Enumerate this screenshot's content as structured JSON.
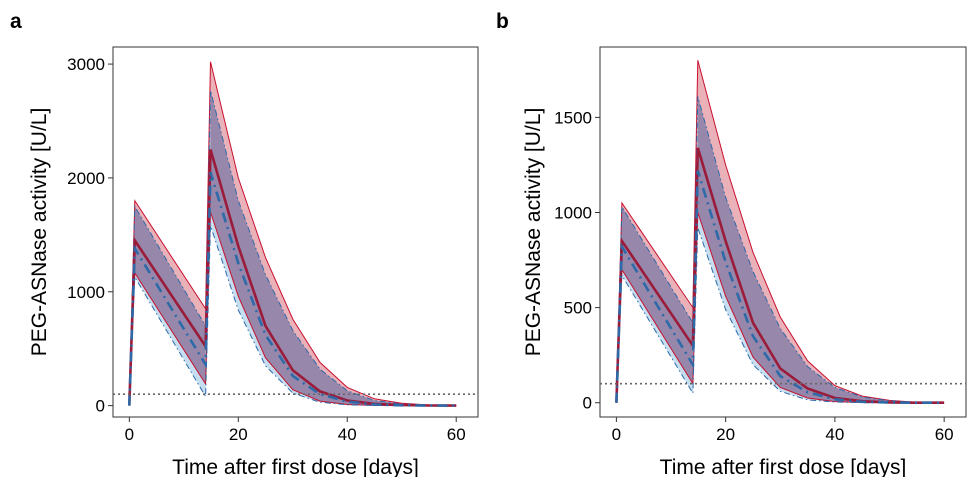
{
  "figure": {
    "panels": [
      "a",
      "b"
    ]
  },
  "colors": {
    "red": "#c8102e",
    "red_fill": "#e8a3ad",
    "blue": "#2e6aa8",
    "blue_fill": "#9ec9e6",
    "overlap_fill": "#8f7ca3",
    "threshold": "#666666"
  },
  "chart_data": [
    {
      "type": "area",
      "panel": "a",
      "xlabel": "Time after first dose [days]",
      "ylabel": "PEG-ASNase activity [U/L]",
      "xlim": [
        -3,
        64
      ],
      "ylim": [
        -100,
        3150
      ],
      "xticks": [
        0,
        20,
        40,
        60
      ],
      "yticks": [
        0,
        1000,
        2000,
        3000
      ],
      "threshold": 100,
      "dose_days": [
        0,
        14
      ],
      "series": [
        {
          "style": "solid",
          "color": "red",
          "median": [
            [
              0,
              0
            ],
            [
              1,
              1450
            ],
            [
              14,
              520
            ],
            [
              14.9,
              2250
            ],
            [
              20,
              1400
            ],
            [
              25,
              700
            ],
            [
              30,
              310
            ],
            [
              35,
              125
            ],
            [
              40,
              45
            ],
            [
              45,
              15
            ],
            [
              50,
              5
            ],
            [
              55,
              1
            ],
            [
              60,
              0
            ]
          ],
          "lower": [
            [
              0,
              0
            ],
            [
              1,
              1165
            ],
            [
              14,
              190
            ],
            [
              14.9,
              1700
            ],
            [
              20,
              960
            ],
            [
              25,
              420
            ],
            [
              30,
              140
            ],
            [
              35,
              40
            ],
            [
              40,
              10
            ],
            [
              45,
              2
            ],
            [
              50,
              0
            ],
            [
              60,
              0
            ]
          ],
          "upper": [
            [
              0,
              0
            ],
            [
              1,
              1800
            ],
            [
              14,
              850
            ],
            [
              14.9,
              3020
            ],
            [
              20,
              2000
            ],
            [
              25,
              1300
            ],
            [
              30,
              760
            ],
            [
              35,
              380
            ],
            [
              40,
              160
            ],
            [
              45,
              60
            ],
            [
              50,
              20
            ],
            [
              55,
              5
            ],
            [
              60,
              0
            ]
          ]
        },
        {
          "style": "dashed",
          "color": "blue",
          "median": [
            [
              0,
              0
            ],
            [
              1,
              1380
            ],
            [
              14,
              360
            ],
            [
              14.9,
              2050
            ],
            [
              20,
              1250
            ],
            [
              25,
              620
            ],
            [
              30,
              260
            ],
            [
              35,
              100
            ],
            [
              40,
              35
            ],
            [
              45,
              10
            ],
            [
              50,
              3
            ],
            [
              55,
              1
            ],
            [
              60,
              0
            ]
          ],
          "lower": [
            [
              0,
              0
            ],
            [
              1,
              1130
            ],
            [
              14,
              80
            ],
            [
              14.9,
              1580
            ],
            [
              20,
              840
            ],
            [
              25,
              350
            ],
            [
              30,
              110
            ],
            [
              35,
              30
            ],
            [
              40,
              7
            ],
            [
              45,
              1
            ],
            [
              50,
              0
            ],
            [
              60,
              0
            ]
          ],
          "upper": [
            [
              0,
              0
            ],
            [
              1,
              1750
            ],
            [
              14,
              700
            ],
            [
              14.9,
              2770
            ],
            [
              20,
              1800
            ],
            [
              25,
              1150
            ],
            [
              30,
              660
            ],
            [
              35,
              320
            ],
            [
              40,
              130
            ],
            [
              45,
              45
            ],
            [
              50,
              15
            ],
            [
              55,
              4
            ],
            [
              60,
              0
            ]
          ]
        }
      ]
    },
    {
      "type": "area",
      "panel": "b",
      "xlabel": "Time after first dose [days]",
      "ylabel": "PEG-ASNase activity [U/L]",
      "xlim": [
        -3,
        64
      ],
      "ylim": [
        -75,
        1870
      ],
      "xticks": [
        0,
        20,
        40,
        60
      ],
      "yticks": [
        0,
        500,
        1000,
        1500
      ],
      "threshold": 100,
      "dose_days": [
        0,
        14
      ],
      "series": [
        {
          "style": "solid",
          "color": "red",
          "median": [
            [
              0,
              0
            ],
            [
              1,
              850
            ],
            [
              14,
              300
            ],
            [
              14.9,
              1340
            ],
            [
              20,
              850
            ],
            [
              25,
              420
            ],
            [
              30,
              180
            ],
            [
              35,
              75
            ],
            [
              40,
              25
            ],
            [
              45,
              8
            ],
            [
              50,
              2
            ],
            [
              55,
              0
            ],
            [
              60,
              0
            ]
          ],
          "lower": [
            [
              0,
              0
            ],
            [
              1,
              700
            ],
            [
              14,
              100
            ],
            [
              14.9,
              1000
            ],
            [
              20,
              560
            ],
            [
              25,
              240
            ],
            [
              30,
              80
            ],
            [
              35,
              25
            ],
            [
              40,
              6
            ],
            [
              45,
              1
            ],
            [
              50,
              0
            ],
            [
              60,
              0
            ]
          ],
          "upper": [
            [
              0,
              0
            ],
            [
              1,
              1050
            ],
            [
              14,
              500
            ],
            [
              14.9,
              1800
            ],
            [
              20,
              1250
            ],
            [
              25,
              790
            ],
            [
              30,
              450
            ],
            [
              35,
              220
            ],
            [
              40,
              90
            ],
            [
              45,
              35
            ],
            [
              50,
              12
            ],
            [
              55,
              3
            ],
            [
              60,
              0
            ]
          ]
        },
        {
          "style": "dashed",
          "color": "blue",
          "median": [
            [
              0,
              0
            ],
            [
              1,
              820
            ],
            [
              14,
              200
            ],
            [
              14.9,
              1220
            ],
            [
              20,
              740
            ],
            [
              25,
              350
            ],
            [
              30,
              140
            ],
            [
              35,
              55
            ],
            [
              40,
              18
            ],
            [
              45,
              5
            ],
            [
              50,
              1
            ],
            [
              55,
              0
            ],
            [
              60,
              0
            ]
          ],
          "lower": [
            [
              0,
              0
            ],
            [
              1,
              670
            ],
            [
              14,
              50
            ],
            [
              14.9,
              920
            ],
            [
              20,
              490
            ],
            [
              25,
              200
            ],
            [
              30,
              60
            ],
            [
              35,
              15
            ],
            [
              40,
              4
            ],
            [
              45,
              0
            ],
            [
              50,
              0
            ],
            [
              60,
              0
            ]
          ],
          "upper": [
            [
              0,
              0
            ],
            [
              1,
              1030
            ],
            [
              14,
              420
            ],
            [
              14.9,
              1610
            ],
            [
              20,
              1080
            ],
            [
              25,
              690
            ],
            [
              30,
              390
            ],
            [
              35,
              190
            ],
            [
              40,
              80
            ],
            [
              45,
              30
            ],
            [
              50,
              10
            ],
            [
              55,
              2
            ],
            [
              60,
              0
            ]
          ]
        }
      ]
    }
  ]
}
